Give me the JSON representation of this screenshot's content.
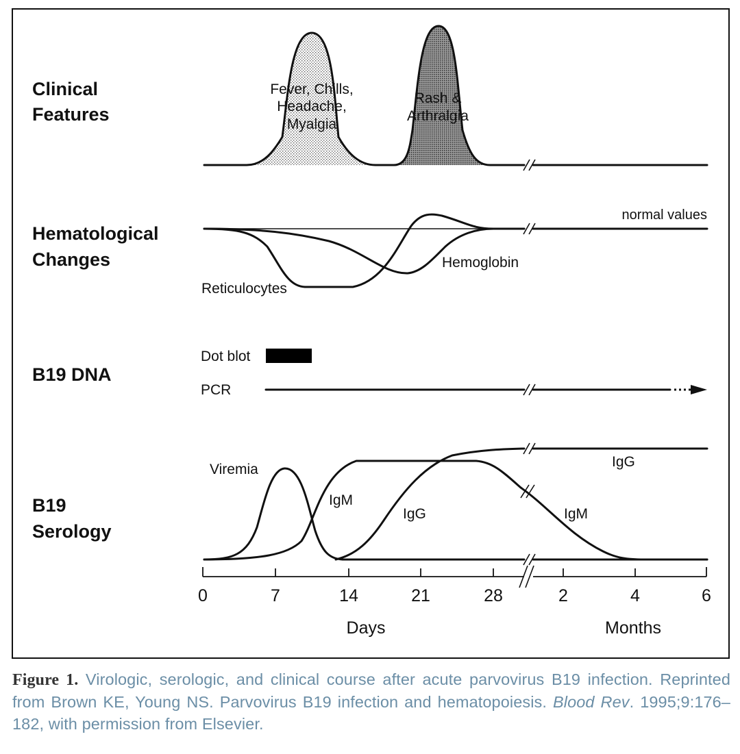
{
  "rows": {
    "clinical": [
      "Clinical",
      "Features"
    ],
    "hematological": [
      "Hematological",
      "Changes"
    ],
    "dna": "B19 DNA",
    "serology": [
      "B19",
      "Serology"
    ]
  },
  "clinical": {
    "peak1": [
      "Fever, Chills,",
      "Headache,",
      "Myalgia"
    ],
    "peak2": [
      "Rash &",
      "Arthralgia"
    ]
  },
  "hematological": {
    "normal": "normal values",
    "reticulocytes": "Reticulocytes",
    "hemoglobin": "Hemoglobin"
  },
  "dna": {
    "dot_blot": "Dot blot",
    "pcr": "PCR"
  },
  "serology": {
    "viremia": "Viremia",
    "igm_early": "IgM",
    "igg_early": "IgG",
    "igg_late": "IgG",
    "igm_late": "IgM"
  },
  "axis": {
    "days_ticks": [
      "0",
      "7",
      "14",
      "21",
      "28"
    ],
    "months_ticks": [
      "2",
      "4",
      "6"
    ],
    "days_label": "Days",
    "months_label": "Months"
  },
  "caption": {
    "figure_no": "Figure 1.",
    "text": "Virologic, serologic, and clinical course after acute parvovirus B19 infection. Reprinted from Brown KE, Young NS. Parvovirus B19 infection and hematopoiesis.",
    "journal": "Blood Rev",
    "citation": ". 1995;9:176–182, with permission from Elsevier."
  },
  "colors": {
    "caption_text": "#6b8ea6",
    "ink": "#111111"
  }
}
